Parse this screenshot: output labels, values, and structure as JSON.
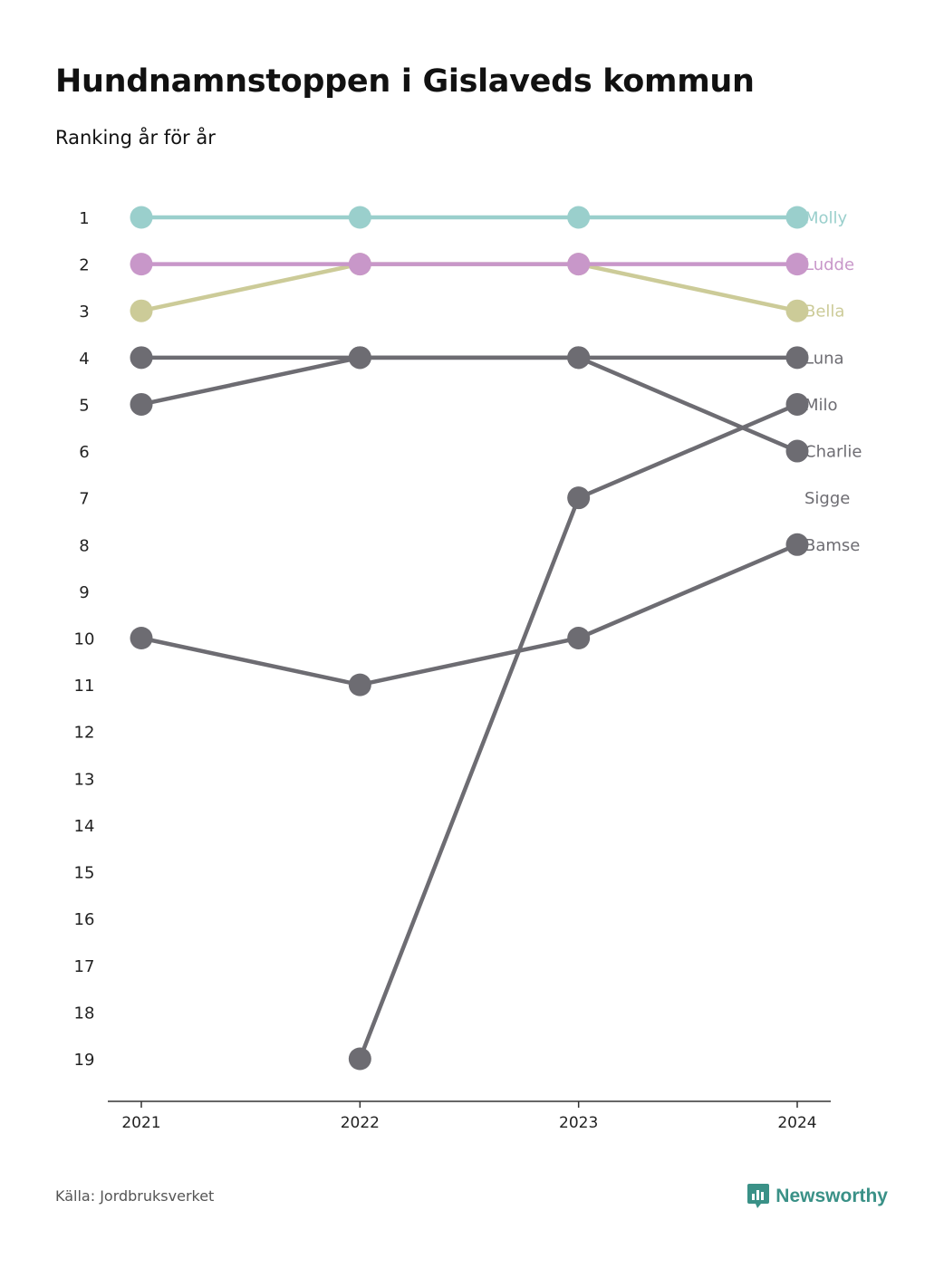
{
  "header": {
    "title": "Hundnamnstoppen i Gislaveds kommun",
    "subtitle": "Ranking år för år"
  },
  "footer": {
    "source": "Källa: Jordbruksverket",
    "brand": "Newsworthy"
  },
  "colors": {
    "accent_teal": "#9acfcc",
    "accent_purple": "#c897c9",
    "accent_olive": "#cccb98",
    "neutral": "#6d6c72",
    "brand": "#3a9187"
  },
  "icons": {
    "brand": "chart-bubble-icon"
  },
  "chart_data": {
    "type": "line",
    "subtype": "bump",
    "title": "Hundnamnstoppen i Gislaveds kommun",
    "subtitle": "Ranking år för år",
    "x": [
      "2021",
      "2022",
      "2023",
      "2024"
    ],
    "y_ticks": [
      1,
      2,
      3,
      4,
      5,
      6,
      7,
      8,
      9,
      10,
      11,
      12,
      13,
      14,
      15,
      16,
      17,
      18,
      19
    ],
    "ylim": [
      1,
      19
    ],
    "y_inverted": true,
    "grid": false,
    "series": [
      {
        "name": "Molly",
        "color": "#9acfcc",
        "values": [
          1,
          1,
          1,
          1
        ]
      },
      {
        "name": "Ludde",
        "color": "#c897c9",
        "values": [
          2,
          2,
          2,
          2
        ]
      },
      {
        "name": "Bella",
        "color": "#cccb98",
        "values": [
          3,
          2,
          2,
          3
        ]
      },
      {
        "name": "Luna",
        "color": "#6d6c72",
        "values": [
          4,
          4,
          4,
          4
        ]
      },
      {
        "name": "Milo",
        "color": "#6d6c72",
        "values": [
          null,
          19,
          7,
          5
        ]
      },
      {
        "name": "Charlie",
        "color": "#6d6c72",
        "values": [
          5,
          4,
          4,
          6
        ]
      },
      {
        "name": "Sigge",
        "color": "#6d6c72",
        "values": [
          null,
          null,
          null,
          7
        ]
      },
      {
        "name": "Bamse",
        "color": "#6d6c72",
        "values": [
          10,
          11,
          10,
          8
        ]
      }
    ]
  }
}
